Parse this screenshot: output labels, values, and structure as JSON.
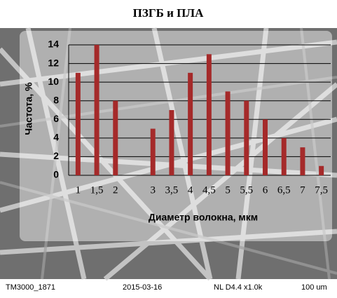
{
  "chart_data": {
    "type": "bar",
    "title": "ПЗГБ и ПЛА",
    "x_label": "Диаметр волокна, мкм",
    "y_label": "Частота, %",
    "categories": [
      "1",
      "1,5",
      "2",
      null,
      "3",
      "3,5",
      "4",
      "4,5",
      "5",
      "5,5",
      "6",
      "6,5",
      "7",
      "7,5"
    ],
    "values": [
      11,
      14,
      8,
      null,
      5,
      7,
      11,
      13,
      9,
      8,
      6,
      4,
      3,
      1
    ],
    "color": "#a52a2a",
    "ylim": [
      0,
      14
    ],
    "yticks": [
      0,
      2,
      4,
      6,
      8,
      10,
      12,
      14
    ],
    "grid": true
  },
  "footer": [
    "TM3000_1871",
    "2015-03-16",
    "NL  D4.4  x1.0k",
    "100 um"
  ]
}
